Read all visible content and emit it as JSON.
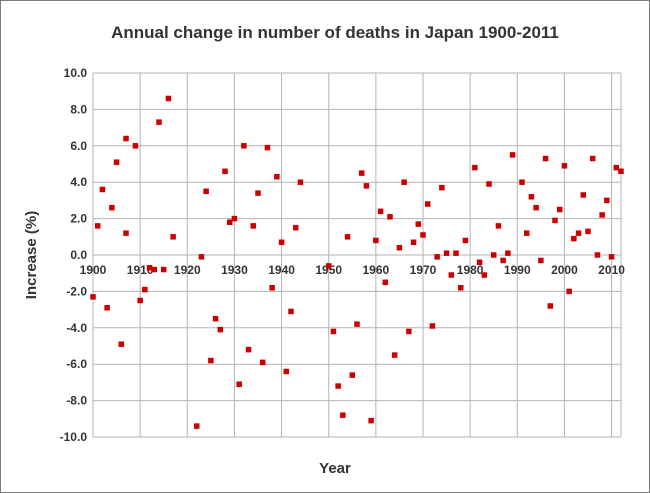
{
  "chart_data": {
    "type": "scatter",
    "title": "Annual change in number of deaths in Japan 1900-2011",
    "xlabel": "Year",
    "ylabel": "Increase (%)",
    "xlim": [
      1900,
      2012
    ],
    "ylim": [
      -10,
      10
    ],
    "xticks": [
      "1900",
      "1910",
      "1920",
      "1930",
      "1940",
      "1950",
      "1960",
      "1970",
      "1980",
      "1990",
      "2000",
      "2010"
    ],
    "yticks": [
      "10.0",
      "8.0",
      "6.0",
      "4.0",
      "2.0",
      "0.0",
      "-2.0",
      "-4.0",
      "-6.0",
      "-8.0",
      "-10.0"
    ],
    "grid": true,
    "legend": "none",
    "marker_color": "#cc0000",
    "points": [
      [
        1900,
        -2.3
      ],
      [
        1901,
        1.6
      ],
      [
        1902,
        3.6
      ],
      [
        1903,
        -2.9
      ],
      [
        1904,
        2.6
      ],
      [
        1905,
        5.1
      ],
      [
        1906,
        -4.9
      ],
      [
        1907,
        6.4
      ],
      [
        1907,
        1.2
      ],
      [
        1909,
        6.0
      ],
      [
        1910,
        -2.5
      ],
      [
        1911,
        -1.9
      ],
      [
        1912,
        -0.7
      ],
      [
        1913,
        -0.8
      ],
      [
        1914,
        7.3
      ],
      [
        1915,
        -0.8
      ],
      [
        1916,
        8.6
      ],
      [
        1917,
        1.0
      ],
      [
        1922,
        -9.4
      ],
      [
        1923,
        -0.1
      ],
      [
        1924,
        3.5
      ],
      [
        1925,
        -5.8
      ],
      [
        1926,
        -3.5
      ],
      [
        1927,
        -4.1
      ],
      [
        1928,
        4.6
      ],
      [
        1929,
        1.8
      ],
      [
        1930,
        2.0
      ],
      [
        1931,
        -7.1
      ],
      [
        1932,
        6.0
      ],
      [
        1933,
        -5.2
      ],
      [
        1934,
        1.6
      ],
      [
        1935,
        3.4
      ],
      [
        1936,
        -5.9
      ],
      [
        1937,
        5.9
      ],
      [
        1938,
        -1.8
      ],
      [
        1939,
        4.3
      ],
      [
        1940,
        0.7
      ],
      [
        1941,
        -6.4
      ],
      [
        1942,
        -3.1
      ],
      [
        1943,
        1.5
      ],
      [
        1944,
        4.0
      ],
      [
        1950,
        -0.6
      ],
      [
        1951,
        -4.2
      ],
      [
        1952,
        -7.2
      ],
      [
        1953,
        -8.8
      ],
      [
        1954,
        1.0
      ],
      [
        1955,
        -6.6
      ],
      [
        1956,
        -3.8
      ],
      [
        1957,
        4.5
      ],
      [
        1958,
        3.8
      ],
      [
        1959,
        -9.1
      ],
      [
        1960,
        0.8
      ],
      [
        1961,
        2.4
      ],
      [
        1962,
        -1.5
      ],
      [
        1963,
        2.1
      ],
      [
        1964,
        -5.5
      ],
      [
        1965,
        0.4
      ],
      [
        1966,
        4.0
      ],
      [
        1967,
        -4.2
      ],
      [
        1968,
        0.7
      ],
      [
        1969,
        1.7
      ],
      [
        1970,
        1.1
      ],
      [
        1971,
        2.8
      ],
      [
        1972,
        -3.9
      ],
      [
        1973,
        -0.1
      ],
      [
        1974,
        3.7
      ],
      [
        1975,
        0.1
      ],
      [
        1976,
        -1.1
      ],
      [
        1977,
        0.1
      ],
      [
        1978,
        -1.8
      ],
      [
        1979,
        0.8
      ],
      [
        1981,
        4.8
      ],
      [
        1982,
        -0.4
      ],
      [
        1983,
        -1.1
      ],
      [
        1984,
        3.9
      ],
      [
        1985,
        0.0
      ],
      [
        1986,
        1.6
      ],
      [
        1987,
        -0.3
      ],
      [
        1988,
        0.1
      ],
      [
        1989,
        5.5
      ],
      [
        1991,
        4.0
      ],
      [
        1992,
        1.2
      ],
      [
        1993,
        3.2
      ],
      [
        1994,
        2.6
      ],
      [
        1995,
        -0.3
      ],
      [
        1996,
        5.3
      ],
      [
        1997,
        -2.8
      ],
      [
        1998,
        1.9
      ],
      [
        1999,
        2.5
      ],
      [
        2000,
        4.9
      ],
      [
        2001,
        -2.0
      ],
      [
        2002,
        0.9
      ],
      [
        2003,
        1.2
      ],
      [
        2004,
        3.3
      ],
      [
        2005,
        1.3
      ],
      [
        2006,
        5.3
      ],
      [
        2007,
        0.0
      ],
      [
        2008,
        2.2
      ],
      [
        2009,
        3.0
      ],
      [
        2010,
        -0.1
      ],
      [
        2011,
        4.8
      ],
      [
        2012,
        4.6
      ]
    ]
  }
}
